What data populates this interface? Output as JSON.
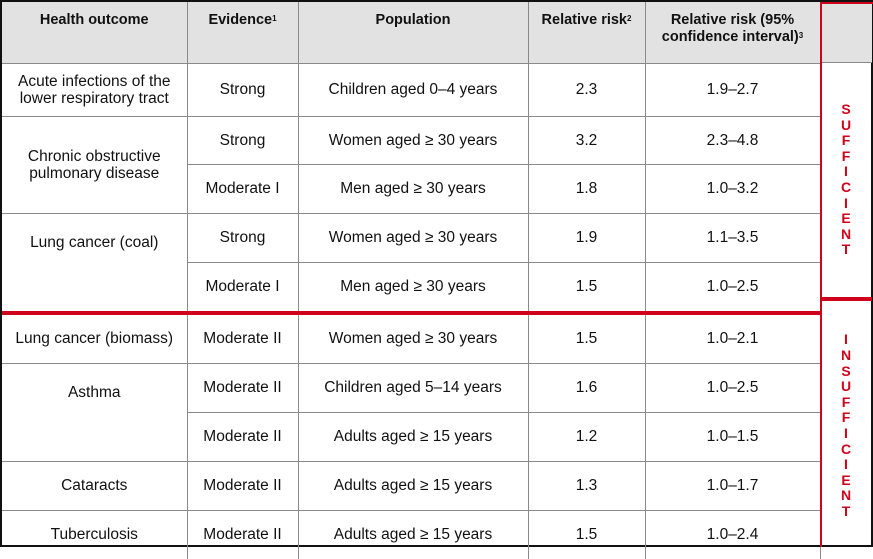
{
  "header": {
    "health_outcome": "Health outcome",
    "evidence": "Evidence",
    "evidence_note": "1",
    "population": "Population",
    "relative_risk": "Relative risk",
    "relative_risk_note": "2",
    "ci_line1": "Relative risk (95%",
    "ci_line2": "confidence interval)",
    "ci_note": "3"
  },
  "rows": [
    {
      "outcome_line1": "Acute infections of the",
      "outcome_line2": "lower respiratory tract",
      "evidence": "Strong",
      "population": "Children aged 0–4 years",
      "rr": "2.3",
      "ci": "1.9–2.7"
    },
    {
      "outcome_line1": "Chronic obstructive",
      "outcome_line2": "pulmonary disease",
      "evidence": "Strong",
      "population": "Women aged ≥ 30 years",
      "rr": "3.2",
      "ci": "2.3–4.8"
    },
    {
      "evidence": "Moderate I",
      "population": "Men aged ≥ 30 years",
      "rr": "1.8",
      "ci": "1.0–3.2"
    },
    {
      "outcome_line1": "Lung cancer (coal)",
      "evidence": "Strong",
      "population": "Women aged ≥ 30 years",
      "rr": "1.9",
      "ci": "1.1–3.5"
    },
    {
      "evidence": "Moderate I",
      "population": "Men aged ≥ 30 years",
      "rr": "1.5",
      "ci": "1.0–2.5"
    },
    {
      "outcome_line1": "Lung cancer (biomass)",
      "evidence": "Moderate II",
      "population": "Women aged ≥ 30 years",
      "rr": "1.5",
      "ci": "1.0–2.1"
    },
    {
      "outcome_line1": "Asthma",
      "evidence": "Moderate II",
      "population": "Children aged 5–14 years",
      "rr": "1.6",
      "ci": "1.0–2.5"
    },
    {
      "evidence": "Moderate II",
      "population": "Adults aged ≥ 15 years",
      "rr": "1.2",
      "ci": "1.0–1.5"
    },
    {
      "outcome_line1": "Cataracts",
      "evidence": "Moderate II",
      "population": "Adults aged ≥ 15 years",
      "rr": "1.3",
      "ci": "1.0–1.7"
    },
    {
      "outcome_line1": "Tuberculosis",
      "evidence": "Moderate II",
      "population": "Adults aged ≥ 15 years",
      "rr": "1.5",
      "ci": "1.0–2.4"
    }
  ],
  "side_labels": {
    "sufficient": [
      "S",
      "U",
      "F",
      "F",
      "I",
      "C",
      "I",
      "E",
      "N",
      "T"
    ],
    "insufficient": [
      "I",
      "N",
      "S",
      "U",
      "F",
      "F",
      "I",
      "C",
      "I",
      "E",
      "N",
      "T"
    ]
  },
  "colors": {
    "accent": "#d0021b",
    "header_bg": "#e2e2e2"
  }
}
